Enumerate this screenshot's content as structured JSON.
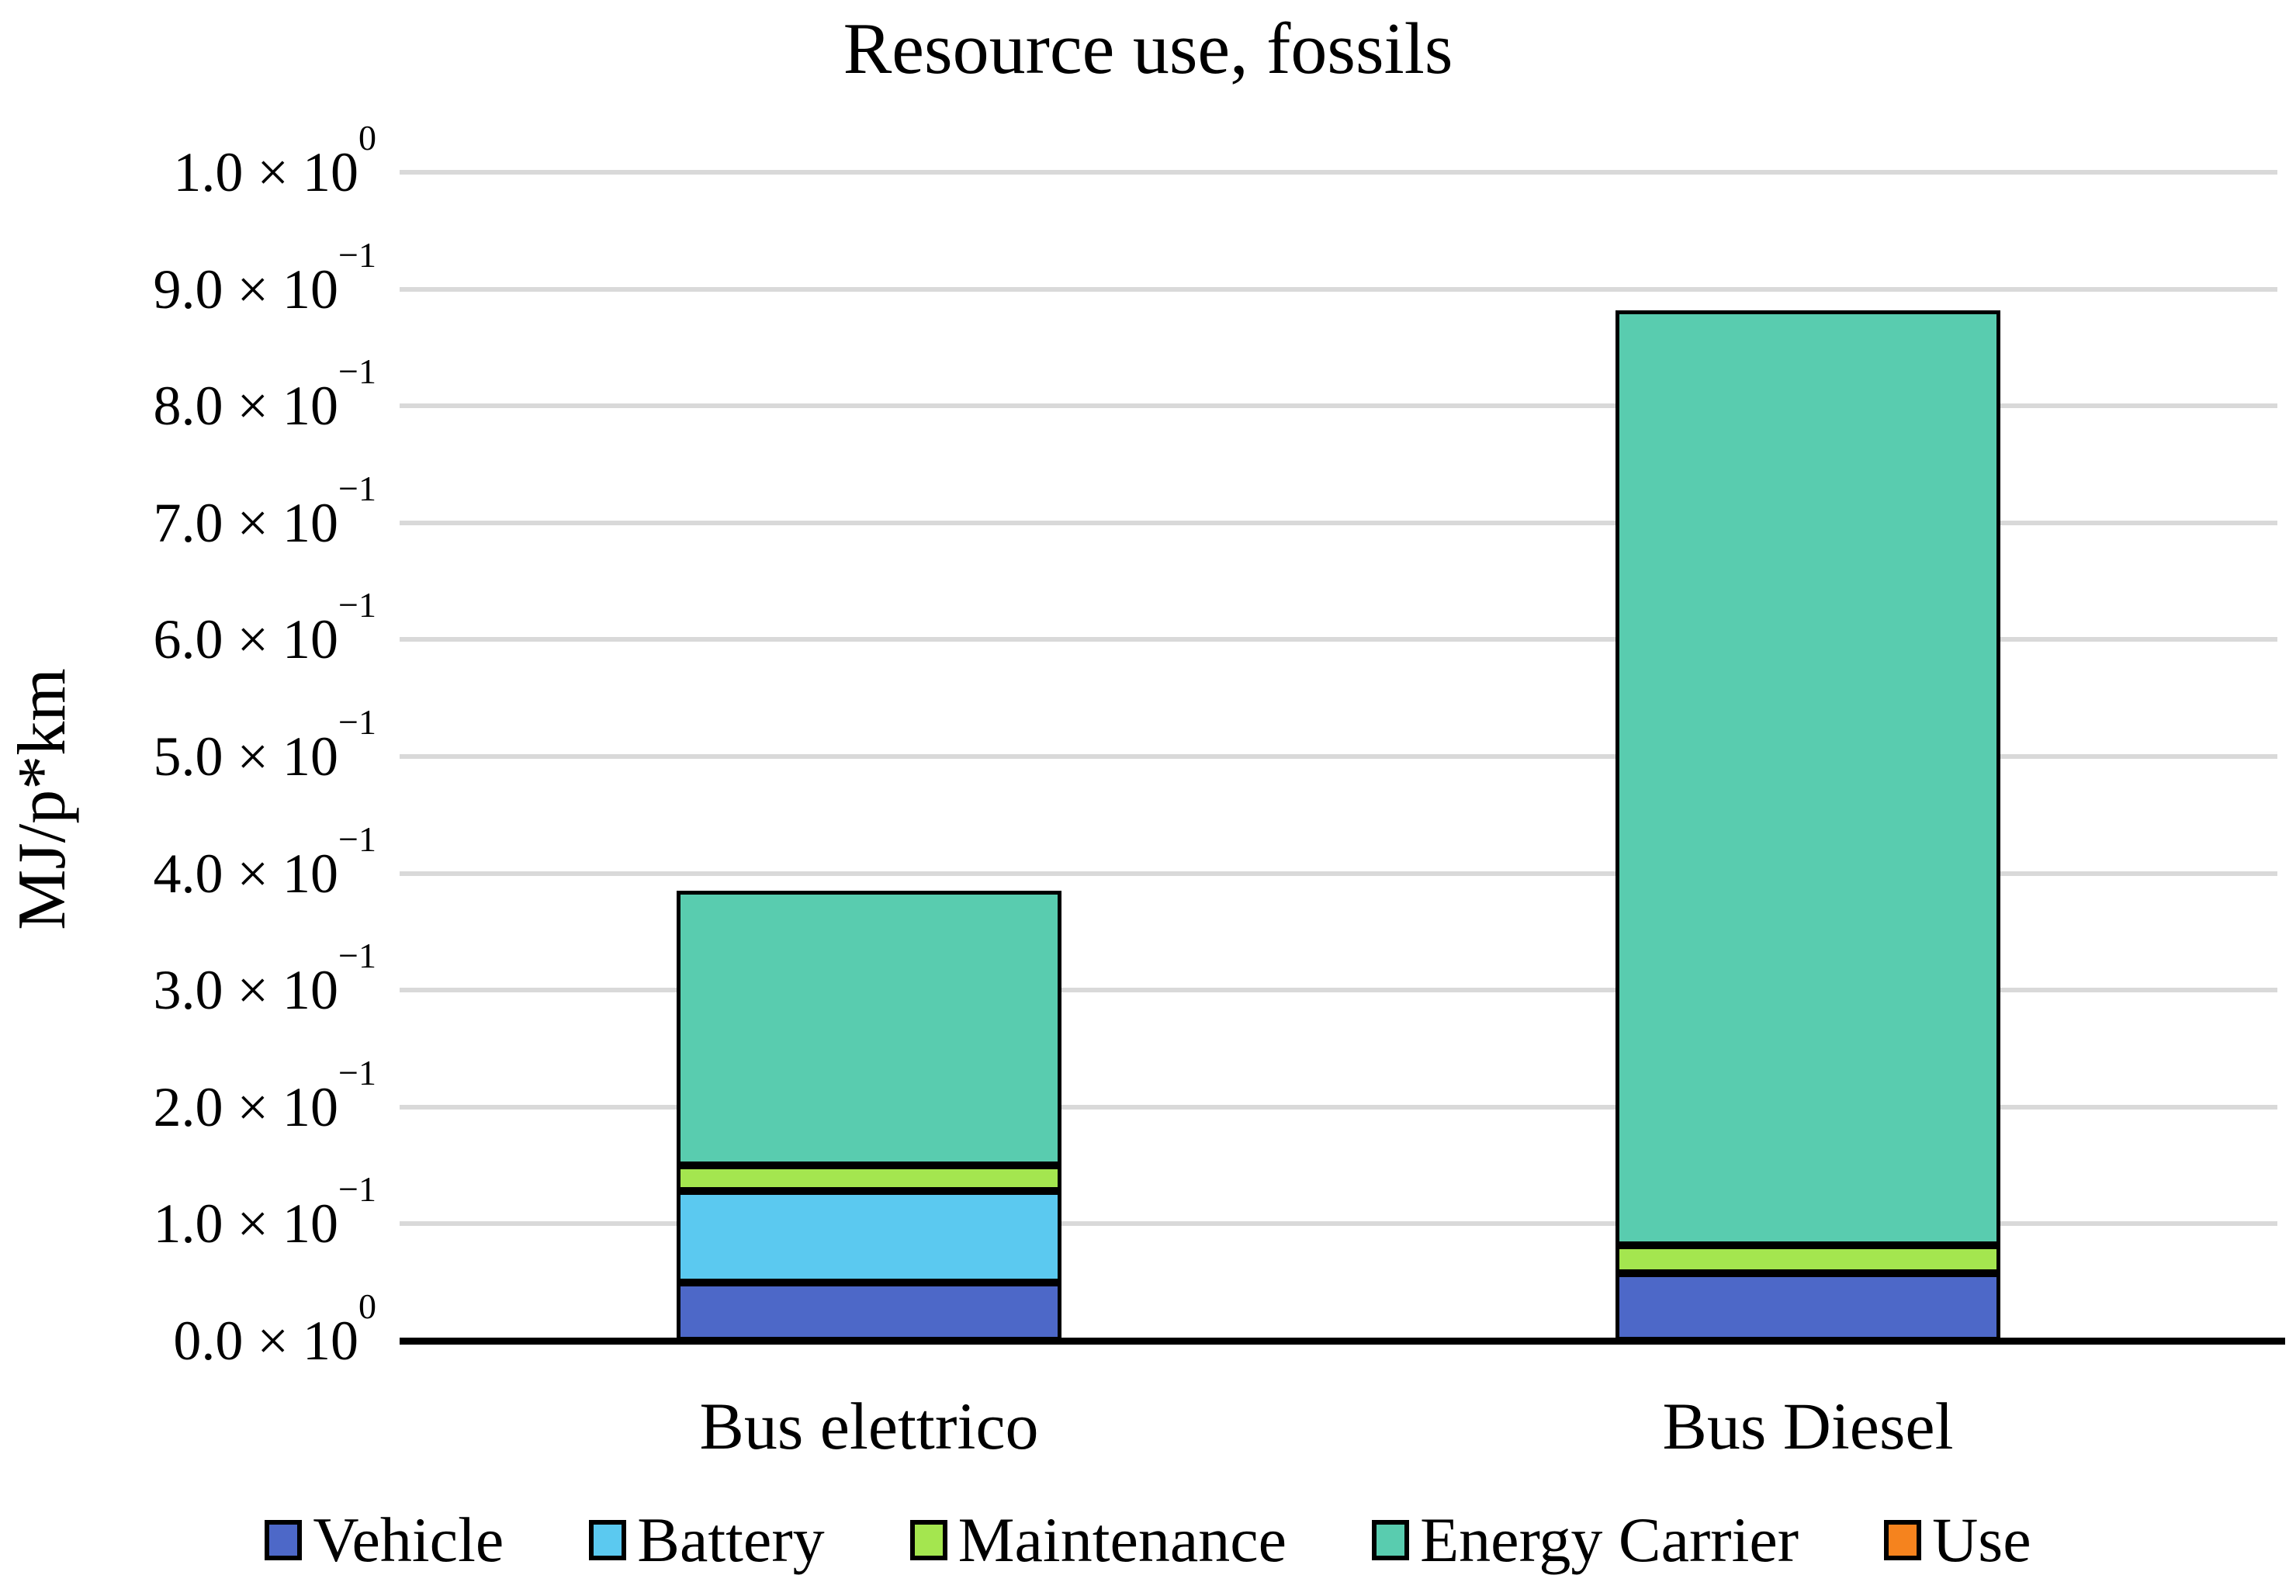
{
  "title": "Resource use, fossils",
  "y_axis": {
    "label": "MJ/p*km",
    "ticks": [
      {
        "value": 1.0,
        "base": "1.0 × 10",
        "exp": "0"
      },
      {
        "value": 0.9,
        "base": "9.0 × 10",
        "exp": "−1"
      },
      {
        "value": 0.8,
        "base": "8.0 × 10",
        "exp": "−1"
      },
      {
        "value": 0.7,
        "base": "7.0 × 10",
        "exp": "−1"
      },
      {
        "value": 0.6,
        "base": "6.0 × 10",
        "exp": "−1"
      },
      {
        "value": 0.5,
        "base": "5.0 × 10",
        "exp": "−1"
      },
      {
        "value": 0.4,
        "base": "4.0 × 10",
        "exp": "−1"
      },
      {
        "value": 0.3,
        "base": "3.0 × 10",
        "exp": "−1"
      },
      {
        "value": 0.2,
        "base": "2.0 × 10",
        "exp": "−1"
      },
      {
        "value": 0.1,
        "base": "1.0 × 10",
        "exp": "−1"
      },
      {
        "value": 0.0,
        "base": "0.0 × 10",
        "exp": "0"
      }
    ]
  },
  "categories": [
    "Bus elettrico",
    "Bus Diesel"
  ],
  "legend": [
    {
      "label": "Vehicle",
      "color": "#4D68C8"
    },
    {
      "label": "Battery",
      "color": "#5BC9F0"
    },
    {
      "label": "Maintenance",
      "color": "#A4E64F"
    },
    {
      "label": "Energy Carrier",
      "color": "#59CCAF"
    },
    {
      "label": "Use",
      "color": "#F5831E"
    }
  ],
  "colors": {
    "gridline": "#D9D9D9",
    "axis": "#000000",
    "bar_border": "#000000",
    "background": "#FFFFFF"
  },
  "chart_data": {
    "type": "bar",
    "stacked": true,
    "title": "Resource use, fossils",
    "xlabel": "",
    "ylabel": "MJ/p*km",
    "categories": [
      "Bus elettrico",
      "Bus Diesel"
    ],
    "series": [
      {
        "name": "Vehicle",
        "color": "#4D68C8",
        "values": [
          0.05,
          0.058
        ]
      },
      {
        "name": "Battery",
        "color": "#5BC9F0",
        "values": [
          0.078,
          0.0
        ]
      },
      {
        "name": "Maintenance",
        "color": "#A4E64F",
        "values": [
          0.022,
          0.024
        ]
      },
      {
        "name": "Energy Carrier",
        "color": "#59CCAF",
        "values": [
          0.235,
          0.8
        ]
      },
      {
        "name": "Use",
        "color": "#F5831E",
        "values": [
          0.0,
          0.0
        ]
      }
    ],
    "totals": [
      0.385,
      0.882
    ],
    "ylim": [
      0.0,
      1.0
    ],
    "ytick_step": 0.1,
    "ytick_format": "scientific",
    "grid": true,
    "legend_position": "bottom"
  }
}
